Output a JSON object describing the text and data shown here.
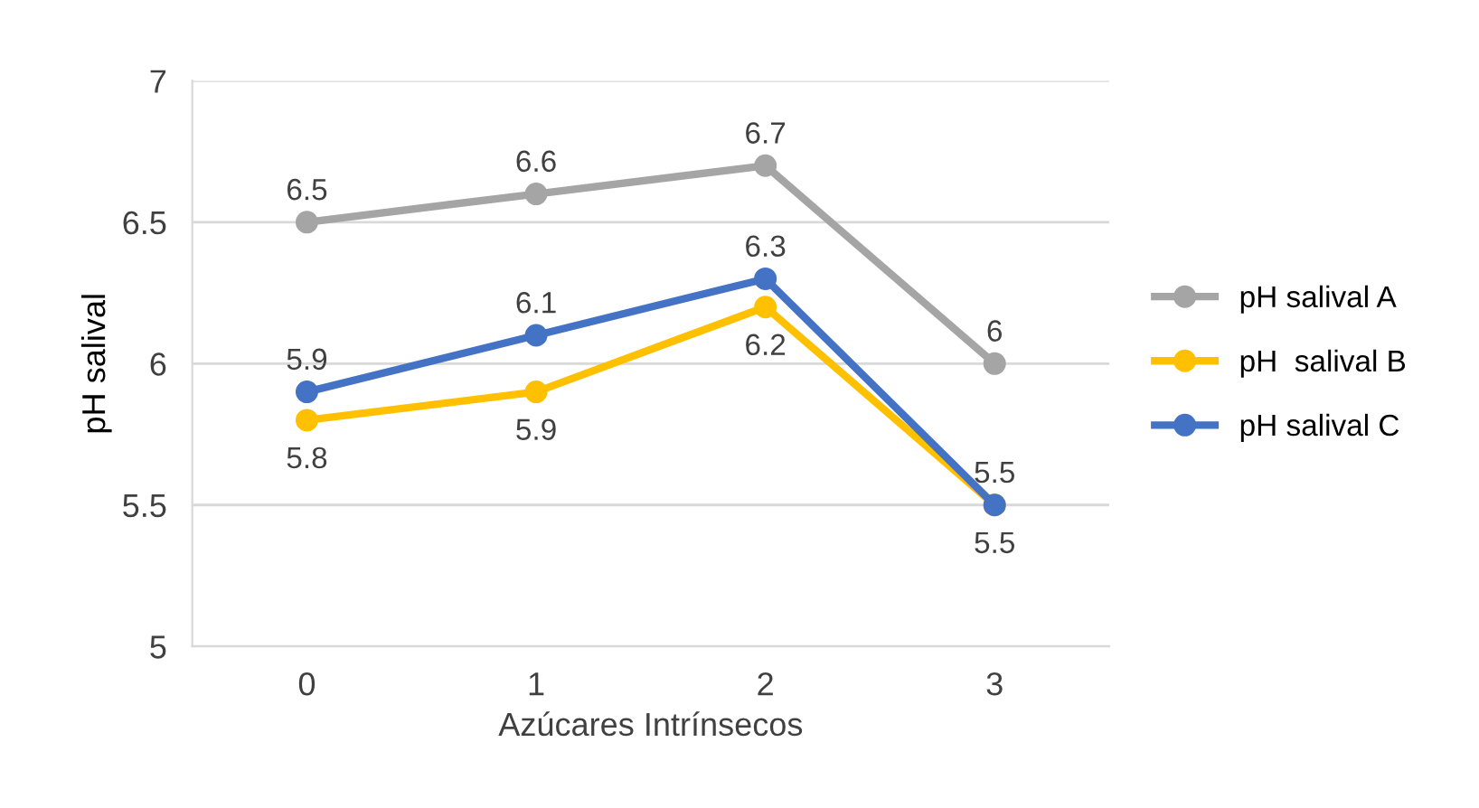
{
  "chart_data": {
    "type": "line",
    "xlabel": "Azúcares Intrínsecos",
    "ylabel": "pH salival",
    "categories": [
      "0",
      "1",
      "2",
      "3"
    ],
    "series": [
      {
        "name": "pH salival A",
        "color": "#a5a5a5",
        "values": [
          6.5,
          6.6,
          6.7,
          6.0
        ]
      },
      {
        "name": "pH  salival B",
        "color": "#ffc000",
        "values": [
          5.8,
          5.9,
          6.2,
          5.5
        ]
      },
      {
        "name": "pH salival C",
        "color": "#4472c4",
        "values": [
          5.9,
          6.1,
          6.3,
          5.5
        ]
      }
    ],
    "ylim": [
      5,
      7
    ],
    "yticks": [
      5,
      5.5,
      6,
      6.5,
      7
    ],
    "grid": "y",
    "legend": "right",
    "marker": "circle",
    "line_style": "solid",
    "data_labels": true
  }
}
